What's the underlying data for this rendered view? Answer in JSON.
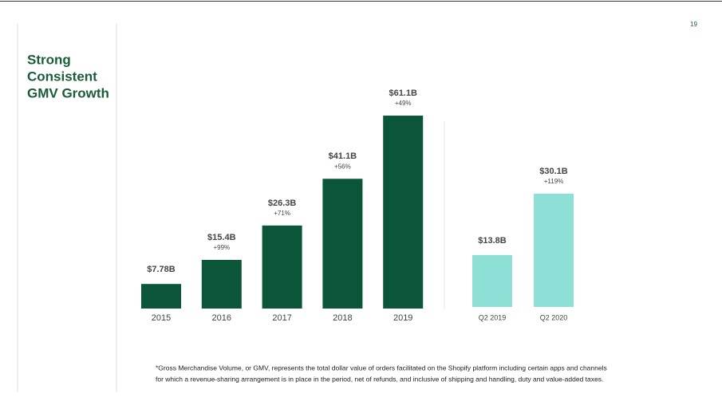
{
  "page_number": "19",
  "title_lines": [
    "Strong",
    "Consistent",
    "GMV Growth"
  ],
  "footnote_lines": [
    "*Gross Merchandise Volume, or GMV, represents the total dollar value of orders facilitated on the Shopify platform including certain apps and channels",
    "for which a revenue-sharing arrangement is in place in the period, net of refunds, and inclusive of shipping and handling, duty and value-added taxes."
  ],
  "chart_data": [
    {
      "type": "bar",
      "categories": [
        "2015",
        "2016",
        "2017",
        "2018",
        "2019"
      ],
      "values": [
        7.78,
        15.4,
        26.3,
        41.1,
        61.1
      ],
      "value_labels": [
        "$7.78B",
        "$15.4B",
        "$26.3B",
        "$41.1B",
        "$61.1B"
      ],
      "growth_labels": [
        null,
        "+99%",
        "+71%",
        "+56%",
        "+49%"
      ],
      "color": "#0b5638"
    },
    {
      "type": "bar",
      "categories": [
        "Q2 2019",
        "Q2 2020"
      ],
      "values": [
        13.8,
        30.1
      ],
      "value_labels": [
        "$13.8B",
        "$30.1B"
      ],
      "growth_labels": [
        null,
        "+119%"
      ],
      "color": "#8ee0d6"
    }
  ]
}
